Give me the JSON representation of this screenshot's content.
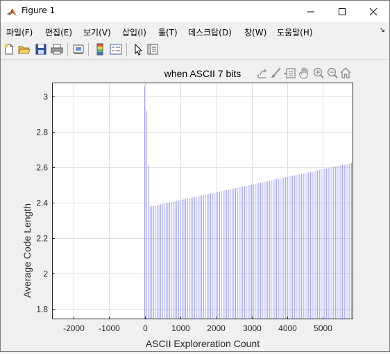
{
  "window": {
    "title": "Figure 1",
    "minimize_glyph": "—",
    "maximize_glyph": "☐",
    "close_glyph": "✕"
  },
  "menu": {
    "items": [
      {
        "label": "파일(F)"
      },
      {
        "label": "편집(E)"
      },
      {
        "label": "보기(V)"
      },
      {
        "label": "삽입(I)"
      },
      {
        "label": "툴(T)"
      },
      {
        "label": "데스크탑(D)"
      },
      {
        "label": "창(W)"
      },
      {
        "label": "도움말(H)"
      }
    ],
    "overflow_glyph": "↘"
  },
  "toolbar": {
    "icons": [
      "new-figure-icon",
      "open-file-icon",
      "save-icon",
      "print-icon",
      "link-plot-icon",
      "insert-colorbar-icon",
      "insert-legend-icon",
      "edit-plot-arrow-icon",
      "property-inspector-icon"
    ]
  },
  "axes_toolbar": {
    "icons": [
      "export-icon",
      "brush-icon",
      "data-tips-icon",
      "pan-hand-icon",
      "zoom-in-icon",
      "zoom-out-icon",
      "home-icon"
    ]
  },
  "colors": {
    "line": "#8888ff",
    "grid": "#dfdfdf",
    "axes_bg": "#ffffff",
    "figure_bg": "#f0f0f0"
  },
  "chart_data": {
    "type": "line",
    "title": "when ASCII 7 bits",
    "xlabel": "ASCII Exploreration Count",
    "ylabel": "Average Code Length",
    "xlim": [
      -2600,
      5850
    ],
    "ylim": [
      1.74,
      3.08
    ],
    "xticks": [
      -2000,
      -1000,
      0,
      1000,
      2000,
      3000,
      4000,
      5000
    ],
    "xtick_labels": [
      "-2000",
      "-1000",
      "0",
      "1000",
      "2000",
      "3000",
      "4000",
      "5000"
    ],
    "yticks": [
      1.8,
      2,
      2.2,
      2.4,
      2.6,
      2.8,
      3
    ],
    "ytick_labels": [
      "1.8",
      "2",
      "2.2",
      "2.4",
      "2.6",
      "2.8",
      "3"
    ],
    "grid": true,
    "series": [
      {
        "style": "vertical spikes from baseline",
        "early_points": [
          [
            0,
            3.06
          ],
          [
            50,
            2.92
          ],
          [
            100,
            2.61
          ],
          [
            150,
            2.38
          ]
        ],
        "spike_start_x": 200,
        "spike_end_x": 5800,
        "spike_step_x": 50,
        "spike_start_y": 2.38,
        "spike_end_y": 2.625
      }
    ]
  }
}
